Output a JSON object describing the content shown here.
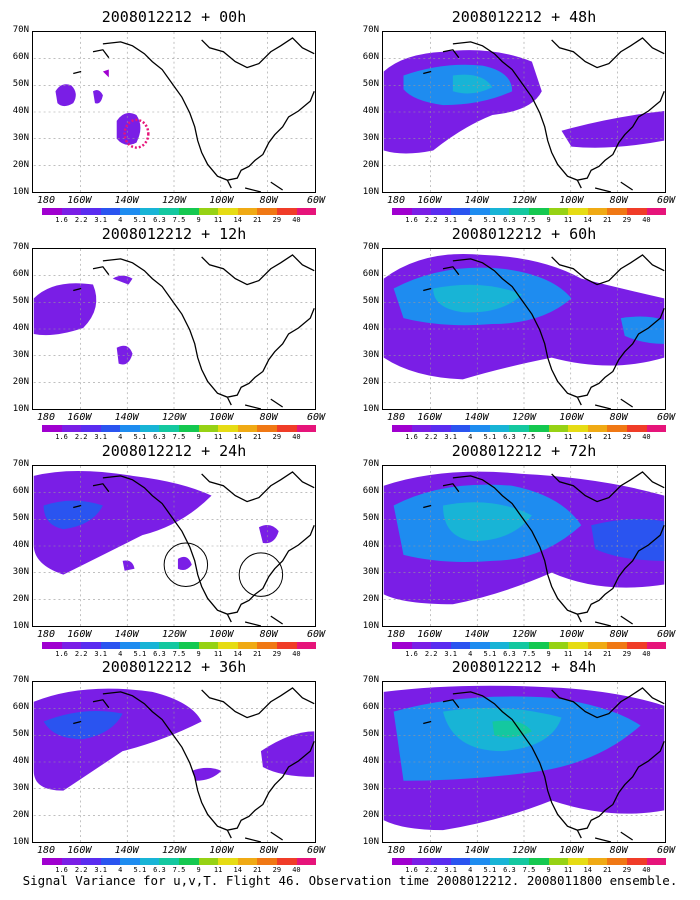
{
  "panels": [
    {
      "title": "2008012212 + 00h"
    },
    {
      "title": "2008012212 + 48h"
    },
    {
      "title": "2008012212 + 12h"
    },
    {
      "title": "2008012212 + 60h"
    },
    {
      "title": "2008012212 + 24h"
    },
    {
      "title": "2008012212 + 72h"
    },
    {
      "title": "2008012212 + 36h"
    },
    {
      "title": "2008012212 + 84h"
    }
  ],
  "lat_labels": [
    "70N",
    "60N",
    "50N",
    "40N",
    "30N",
    "20N",
    "10N"
  ],
  "lon_labels": [
    "180",
    "160W",
    "140W",
    "120W",
    "100W",
    "80W",
    "60W"
  ],
  "colorbar": {
    "labels": [
      "1.6",
      "2.2",
      "3.1",
      "4",
      "5.1",
      "6.3",
      "7.5",
      "9",
      "11",
      "14",
      "21",
      "29",
      "40"
    ],
    "colors": [
      "#a000d0",
      "#7a1ee6",
      "#5a2cf0",
      "#2a54f0",
      "#1e8cf0",
      "#18b4d6",
      "#14c8a0",
      "#14c850",
      "#96d214",
      "#e6dc14",
      "#f0aa14",
      "#f07814",
      "#f03c28",
      "#e6147a"
    ]
  },
  "footer": "Signal Variance for u,v,T. Flight 46. Observation time 2008012212. 2008011800 ensemble."
}
